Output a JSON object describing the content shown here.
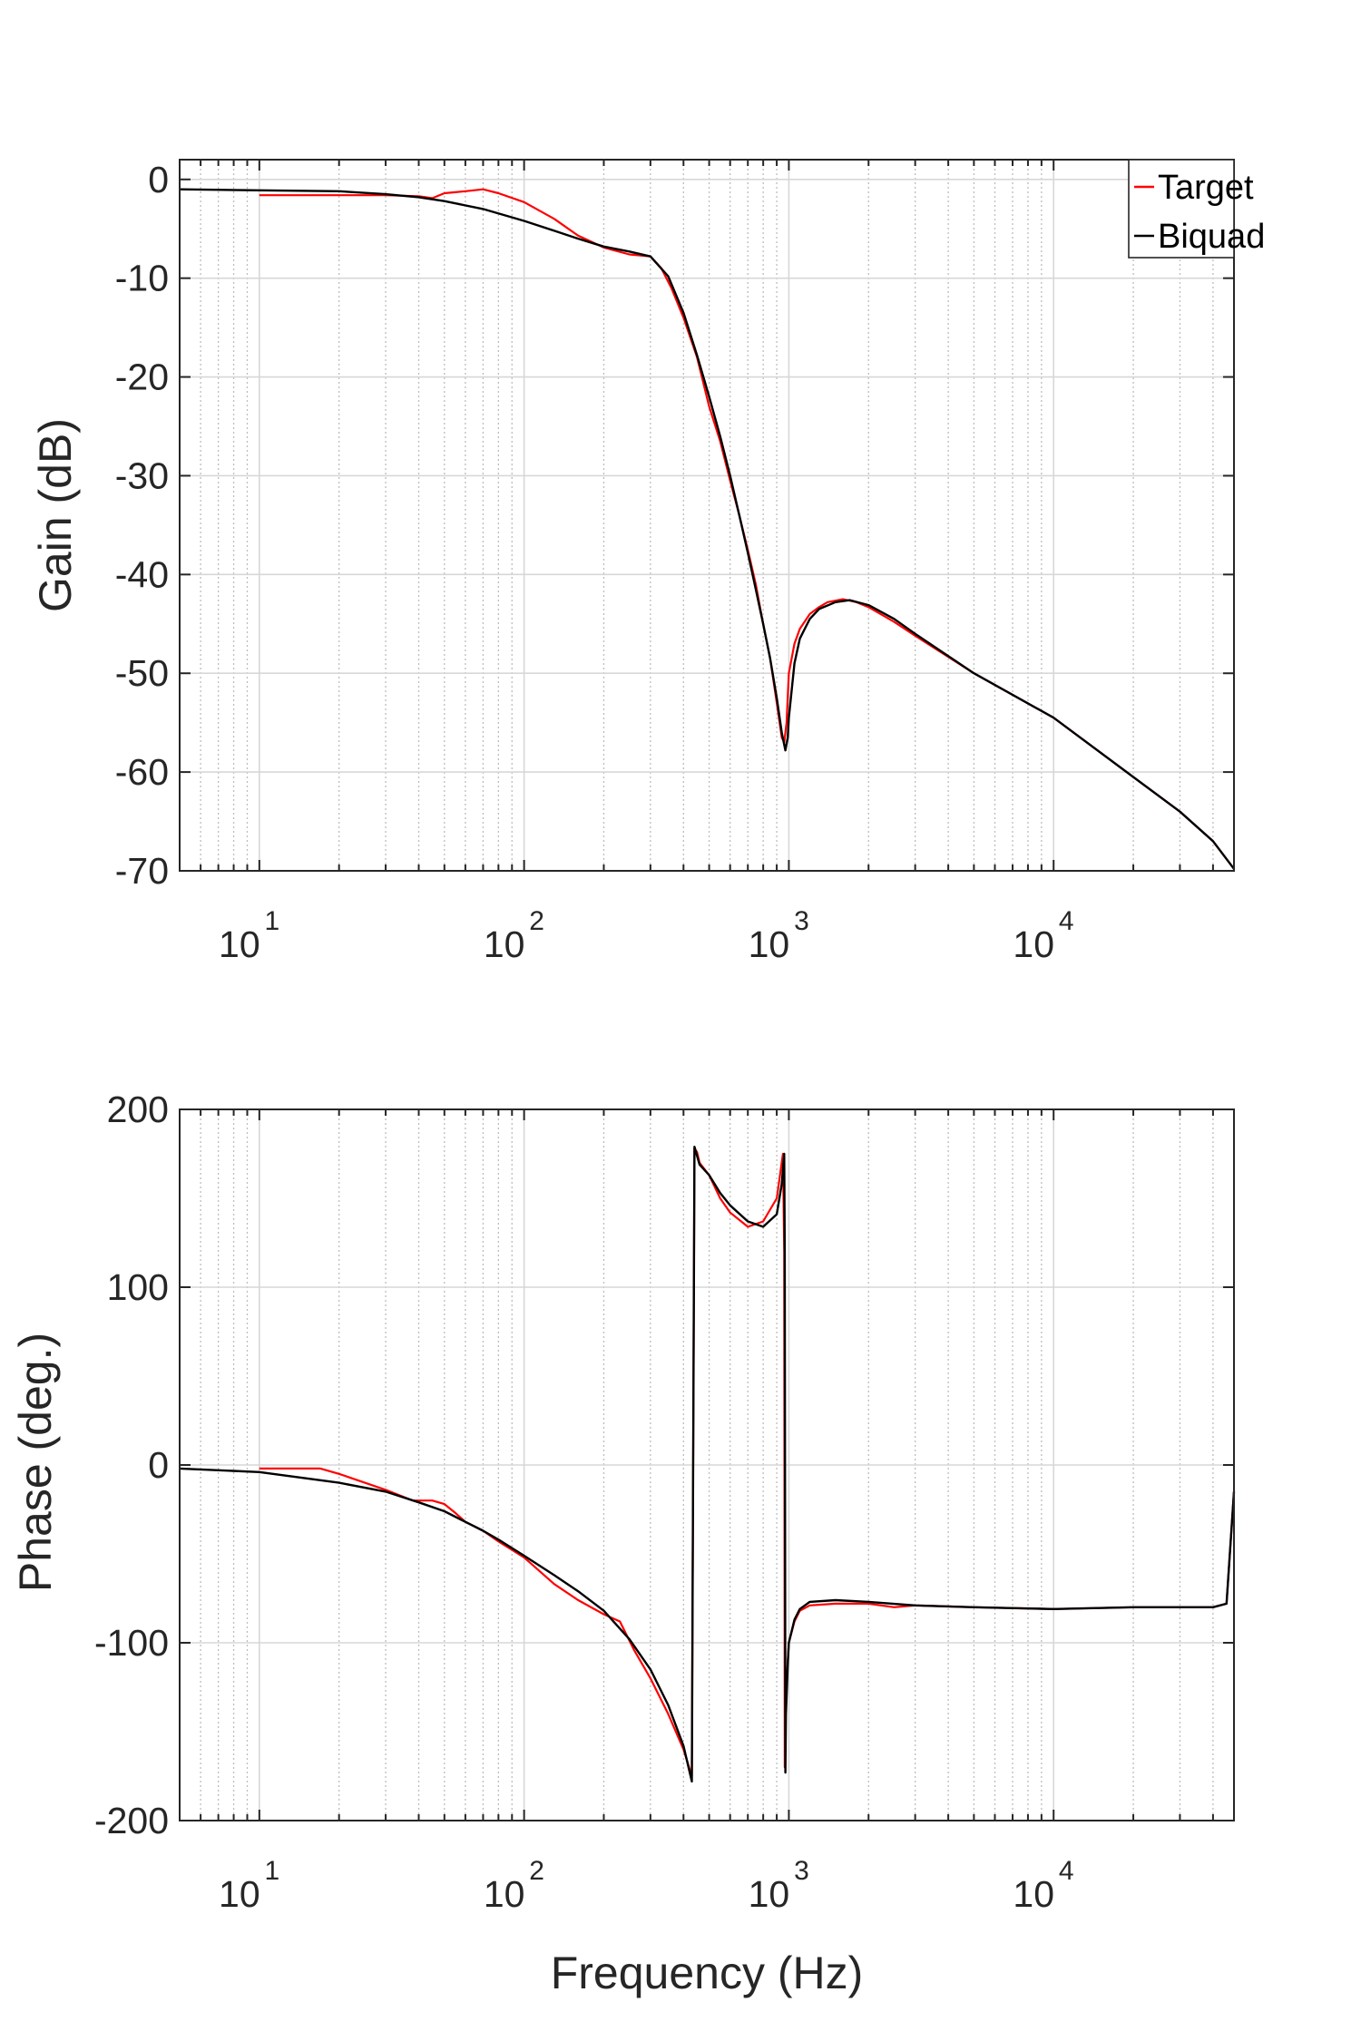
{
  "colors": {
    "target": "#ff0000",
    "biquad": "#000000",
    "grid": "#d7d7d7",
    "minor_grid": "#bdbdbd",
    "axis": "#262626"
  },
  "chart_data": [
    {
      "type": "line",
      "xlabel": "",
      "ylabel": "Gain (dB)",
      "x_scale": "log",
      "xlim": [
        5,
        48000
      ],
      "ylim": [
        -70,
        2
      ],
      "y_ticks": [
        0,
        -10,
        -20,
        -30,
        -40,
        -50,
        -60,
        -70
      ],
      "x_ticks": [
        {
          "value": 10,
          "base": "10",
          "exp": "1"
        },
        {
          "value": 100,
          "base": "10",
          "exp": "2"
        },
        {
          "value": 1000,
          "base": "10",
          "exp": "3"
        },
        {
          "value": 10000,
          "base": "10",
          "exp": "4"
        }
      ],
      "grid": true,
      "legend": {
        "placement": "top-right",
        "entries": [
          "Target",
          "Biquad"
        ]
      },
      "series": [
        {
          "name": "Target",
          "color": "#ff0000",
          "x": [
            10,
            20,
            30,
            40,
            45,
            50,
            55,
            60,
            70,
            80,
            100,
            130,
            160,
            200,
            250,
            300,
            330,
            360,
            400,
            450,
            500,
            550,
            600,
            650,
            700,
            750,
            800,
            850,
            900,
            940,
            960,
            980,
            1000,
            1050,
            1100,
            1200,
            1300,
            1400,
            1600,
            1800,
            2000,
            2500,
            3000,
            5000,
            10000,
            20000,
            30000,
            40000,
            48000
          ],
          "y": [
            -1.6,
            -1.6,
            -1.6,
            -1.7,
            -1.9,
            -1.4,
            -1.3,
            -1.2,
            -1.0,
            -1.4,
            -2.3,
            -4.0,
            -5.7,
            -6.9,
            -7.6,
            -7.8,
            -9.0,
            -11.0,
            -14.0,
            -18.0,
            -23.0,
            -26.5,
            -30.5,
            -34.0,
            -37.5,
            -41.0,
            -45.0,
            -48.5,
            -53.0,
            -56.5,
            -57.0,
            -55.0,
            -50.0,
            -47.0,
            -45.5,
            -44.0,
            -43.3,
            -42.8,
            -42.5,
            -42.8,
            -43.3,
            -44.8,
            -46.2,
            -50.0,
            -54.5,
            -60.5,
            -64.0,
            -67.0,
            -69.8
          ]
        },
        {
          "name": "Biquad",
          "color": "#000000",
          "x": [
            5,
            10,
            20,
            30,
            40,
            50,
            70,
            100,
            130,
            160,
            200,
            250,
            300,
            350,
            400,
            450,
            500,
            550,
            600,
            650,
            700,
            750,
            800,
            850,
            900,
            940,
            970,
            990,
            1000,
            1050,
            1100,
            1200,
            1300,
            1500,
            1700,
            2000,
            2500,
            3000,
            5000,
            10000,
            20000,
            30000,
            40000,
            48000
          ],
          "y": [
            -1.0,
            -1.1,
            -1.2,
            -1.5,
            -1.8,
            -2.2,
            -3.0,
            -4.2,
            -5.2,
            -6.0,
            -6.8,
            -7.3,
            -7.8,
            -9.8,
            -13.5,
            -17.8,
            -22.0,
            -26.0,
            -30.0,
            -34.0,
            -37.8,
            -41.5,
            -45.0,
            -48.5,
            -52.5,
            -56.0,
            -57.8,
            -56.5,
            -54.5,
            -49.0,
            -46.5,
            -44.5,
            -43.5,
            -42.8,
            -42.6,
            -43.1,
            -44.5,
            -46.0,
            -50.0,
            -54.5,
            -60.5,
            -64.0,
            -67.0,
            -69.8
          ]
        }
      ]
    },
    {
      "type": "line",
      "xlabel": "Frequency (Hz)",
      "ylabel": "Phase (deg.)",
      "x_scale": "log",
      "xlim": [
        5,
        48000
      ],
      "ylim": [
        -200,
        200
      ],
      "y_ticks": [
        200,
        100,
        0,
        -100,
        -200
      ],
      "x_ticks": [
        {
          "value": 10,
          "base": "10",
          "exp": "1"
        },
        {
          "value": 100,
          "base": "10",
          "exp": "2"
        },
        {
          "value": 1000,
          "base": "10",
          "exp": "3"
        },
        {
          "value": 10000,
          "base": "10",
          "exp": "4"
        }
      ],
      "grid": true,
      "series": [
        {
          "name": "Target",
          "color": "#ff0000",
          "x": [
            10,
            13,
            17,
            20,
            30,
            38,
            40,
            45,
            50,
            55,
            60,
            70,
            80,
            100,
            130,
            160,
            200,
            230,
            260,
            300,
            350,
            400,
            430,
            440,
            450,
            460,
            500,
            550,
            600,
            700,
            800,
            900,
            930,
            950,
            960,
            965,
            975,
            1000,
            1050,
            1100,
            1200,
            1500,
            2000,
            2500,
            3000,
            5000,
            10000,
            20000,
            30000,
            40000,
            45000,
            48000
          ],
          "y": [
            -2,
            -2,
            -2,
            -5,
            -14,
            -20,
            -20,
            -20,
            -22,
            -27,
            -32,
            -37,
            -43,
            -52,
            -67,
            -76,
            -84,
            -88,
            -104,
            -120,
            -140,
            -160,
            -175,
            178,
            176,
            170,
            163,
            150,
            142,
            134,
            137,
            150,
            165,
            175,
            120,
            -170,
            -130,
            -100,
            -88,
            -82,
            -79,
            -78,
            -78,
            -80,
            -79,
            -80,
            -81,
            -80,
            -80,
            -80,
            -78,
            -15
          ]
        },
        {
          "name": "Biquad",
          "color": "#000000",
          "x": [
            5,
            10,
            20,
            30,
            40,
            50,
            60,
            70,
            80,
            100,
            130,
            160,
            200,
            250,
            300,
            350,
            400,
            430,
            440,
            450,
            460,
            500,
            550,
            600,
            700,
            800,
            900,
            940,
            960,
            965,
            970,
            975,
            990,
            1000,
            1050,
            1100,
            1200,
            1500,
            2000,
            3000,
            5000,
            10000,
            20000,
            30000,
            40000,
            45000,
            48000
          ],
          "y": [
            -2,
            -4,
            -10,
            -15,
            -21,
            -26,
            -32,
            -37,
            -42,
            -51,
            -62,
            -71,
            -82,
            -98,
            -115,
            -135,
            -158,
            -178,
            179,
            174,
            169,
            163,
            153,
            146,
            137,
            134,
            141,
            158,
            175,
            120,
            -173,
            -140,
            -112,
            -100,
            -87,
            -81,
            -77,
            -76,
            -77,
            -79,
            -80,
            -81,
            -80,
            -80,
            -80,
            -78,
            -15
          ]
        }
      ]
    }
  ]
}
